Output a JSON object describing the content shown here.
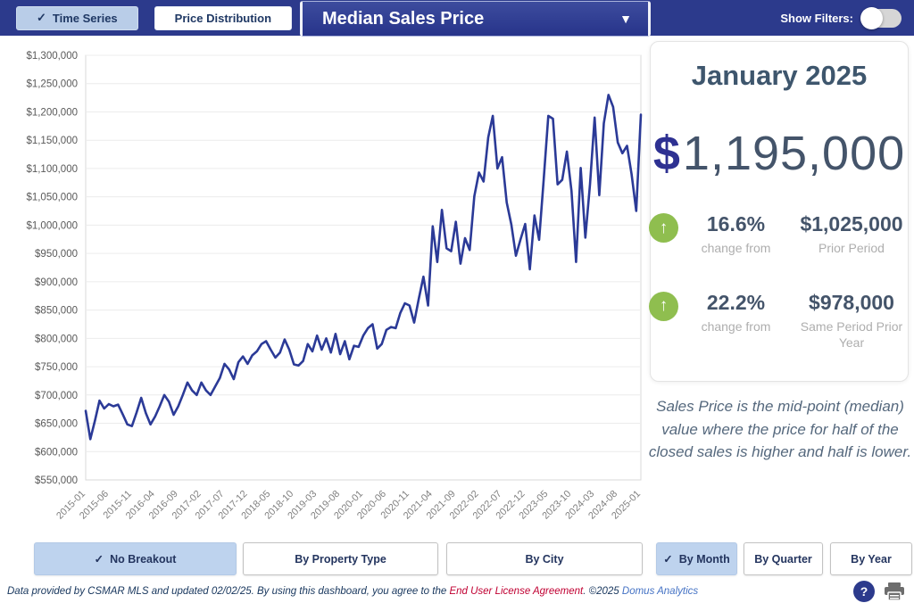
{
  "header": {
    "tabs": [
      {
        "label": "Time Series",
        "selected": true
      },
      {
        "label": "Price Distribution",
        "selected": false
      }
    ],
    "metric_dropdown_value": "Median Sales Price",
    "show_filters_label": "Show Filters:",
    "filters_on": false
  },
  "icons": {
    "check": "✓",
    "chevron_down": "▼",
    "up_arrow": "↑",
    "question_mark": "?"
  },
  "panel": {
    "period_title": "January 2025",
    "currency_symbol": "$",
    "current_value": "1,195,000",
    "stats": [
      {
        "pct": "16.6%",
        "change_label": "change from",
        "value": "$1,025,000",
        "period_label": "Prior Period"
      },
      {
        "pct": "22.2%",
        "change_label": "change from",
        "value": "$978,000",
        "period_label": "Same Period Prior Year"
      }
    ],
    "note": "Sales Price is the mid-point (median) value where the price for half of the closed sales is higher and half is lower."
  },
  "breakout_buttons": [
    {
      "label": "No Breakout",
      "selected": true
    },
    {
      "label": "By Property Type",
      "selected": false
    },
    {
      "label": "By City",
      "selected": false
    },
    {
      "label": "By Month",
      "selected": true
    },
    {
      "label": "By Quarter",
      "selected": false
    },
    {
      "label": "By Year",
      "selected": false
    }
  ],
  "footer": {
    "disclaimer_prefix": "Data provided by CSMAR MLS and updated 02/02/25.  By using this dashboard, you agree to the ",
    "eula_link": "End User License Agreement",
    "disclaimer_mid": ".  ©2025 ",
    "brand_link": "Domus Analytics"
  },
  "colors": {
    "header_navy": "#2c3a8c",
    "line_navy": "#2b3a97",
    "selected_tab_blue": "#b9cde8",
    "green_up": "#8fbe4f",
    "slate_text": "#44546a",
    "gray_label": "#aeaeae"
  },
  "chart_data": {
    "type": "line",
    "title": "Median Sales Price",
    "x_frequency": "monthly",
    "x_start": "2015-01",
    "x_end": "2025-01",
    "x_tick_labels": [
      "2015-01",
      "2015-06",
      "2015-11",
      "2016-04",
      "2016-09",
      "2017-02",
      "2017-07",
      "2017-12",
      "2018-05",
      "2018-10",
      "2019-03",
      "2019-08",
      "2020-01",
      "2020-06",
      "2020-11",
      "2021-04",
      "2021-09",
      "2022-02",
      "2022-07",
      "2022-12",
      "2023-05",
      "2023-10",
      "2024-03",
      "2024-08",
      "2025-01"
    ],
    "x_tick_every": 5,
    "values": [
      672000,
      622000,
      655000,
      690000,
      676000,
      684000,
      680000,
      683000,
      666000,
      648000,
      645000,
      669000,
      695000,
      668000,
      648000,
      662000,
      680000,
      700000,
      688000,
      665000,
      680000,
      700000,
      722000,
      708000,
      700000,
      722000,
      708000,
      700000,
      715000,
      730000,
      755000,
      745000,
      728000,
      758000,
      768000,
      755000,
      770000,
      777000,
      790000,
      795000,
      780000,
      766000,
      775000,
      798000,
      780000,
      754000,
      752000,
      760000,
      790000,
      777000,
      805000,
      780000,
      800000,
      775000,
      808000,
      772000,
      795000,
      763000,
      787000,
      785000,
      805000,
      818000,
      825000,
      782000,
      790000,
      815000,
      820000,
      818000,
      845000,
      862000,
      858000,
      828000,
      870000,
      909000,
      858000,
      998000,
      935000,
      1027000,
      959000,
      954000,
      1006000,
      932000,
      977000,
      956000,
      1051000,
      1093000,
      1077000,
      1155000,
      1193000,
      1100000,
      1120000,
      1040000,
      1001000,
      946000,
      975000,
      1002000,
      922000,
      1017000,
      974000,
      1080000,
      1193000,
      1188000,
      1072000,
      1080000,
      1130000,
      1060000,
      935000,
      1101000,
      978000,
      1072000,
      1190000,
      1053000,
      1180000,
      1230000,
      1209000,
      1146000,
      1127000,
      1140000,
      1090000,
      1025000,
      1195000
    ],
    "ylabel": "",
    "xlabel": "",
    "ylim": [
      550000,
      1300000
    ],
    "y_tick_step": 50000,
    "grid": true,
    "legend": false,
    "line_color": "#2b3a97"
  }
}
